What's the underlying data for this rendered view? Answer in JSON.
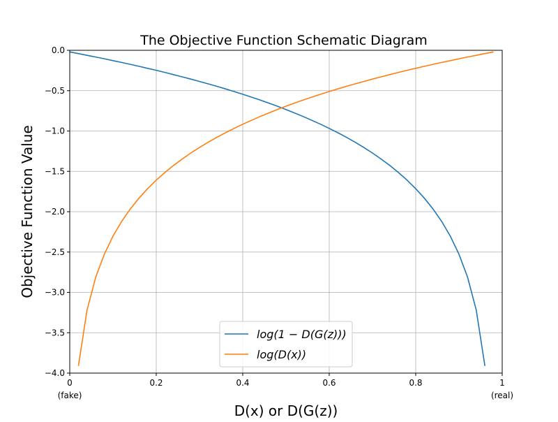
{
  "chart_data": {
    "type": "line",
    "title": "The Objective Function Schematic Diagram",
    "xlabel": "D(x) or D(G(z))",
    "ylabel": "Objective Function Value",
    "xlim": [
      0,
      1
    ],
    "ylim": [
      -4.0,
      0.0
    ],
    "grid": true,
    "legend_position": "lower-center",
    "x_ticks": [
      {
        "value": 0,
        "label": "0",
        "sub": "(fake)"
      },
      {
        "value": 0.2,
        "label": "0.2",
        "sub": ""
      },
      {
        "value": 0.4,
        "label": "0.4",
        "sub": ""
      },
      {
        "value": 0.6,
        "label": "0.6",
        "sub": ""
      },
      {
        "value": 0.8,
        "label": "0.8",
        "sub": ""
      },
      {
        "value": 1,
        "label": "1",
        "sub": "(real)"
      }
    ],
    "y_ticks": [
      {
        "value": 0,
        "label": "0.0"
      },
      {
        "value": -0.5,
        "label": "−0.5"
      },
      {
        "value": -1.0,
        "label": "−1.0"
      },
      {
        "value": -1.5,
        "label": "−1.5"
      },
      {
        "value": -2.0,
        "label": "−2.0"
      },
      {
        "value": -2.5,
        "label": "−2.5"
      },
      {
        "value": -3.0,
        "label": "−3.0"
      },
      {
        "value": -3.5,
        "label": "−3.5"
      },
      {
        "value": -4.0,
        "label": "−4.0"
      }
    ],
    "series": [
      {
        "name": "log(1 − D(G(z)))",
        "color": "#1f77b4",
        "x_start": 0.0,
        "x_step": 0.02,
        "values": [
          -0.02,
          -0.041,
          -0.062,
          -0.083,
          -0.105,
          -0.128,
          -0.151,
          -0.174,
          -0.198,
          -0.223,
          -0.248,
          -0.274,
          -0.301,
          -0.329,
          -0.357,
          -0.386,
          -0.416,
          -0.446,
          -0.478,
          -0.511,
          -0.545,
          -0.58,
          -0.616,
          -0.654,
          -0.693,
          -0.734,
          -0.777,
          -0.821,
          -0.868,
          -0.916,
          -0.968,
          -1.022,
          -1.079,
          -1.139,
          -1.204,
          -1.273,
          -1.347,
          -1.427,
          -1.514,
          -1.609,
          -1.715,
          -1.833,
          -1.966,
          -2.12,
          -2.303,
          -2.526,
          -2.813,
          -3.219,
          -3.912
        ]
      },
      {
        "name": "log(D(x))",
        "color": "#ff7f0e",
        "x_start": 0.02,
        "x_step": 0.02,
        "values": [
          -3.912,
          -3.219,
          -2.813,
          -2.526,
          -2.303,
          -2.12,
          -1.966,
          -1.833,
          -1.715,
          -1.609,
          -1.514,
          -1.427,
          -1.347,
          -1.273,
          -1.204,
          -1.139,
          -1.079,
          -1.022,
          -0.968,
          -0.916,
          -0.868,
          -0.821,
          -0.777,
          -0.734,
          -0.693,
          -0.654,
          -0.616,
          -0.58,
          -0.545,
          -0.511,
          -0.478,
          -0.446,
          -0.416,
          -0.386,
          -0.357,
          -0.329,
          -0.301,
          -0.274,
          -0.248,
          -0.223,
          -0.198,
          -0.174,
          -0.151,
          -0.128,
          -0.105,
          -0.083,
          -0.062,
          -0.041,
          -0.02
        ]
      }
    ]
  }
}
